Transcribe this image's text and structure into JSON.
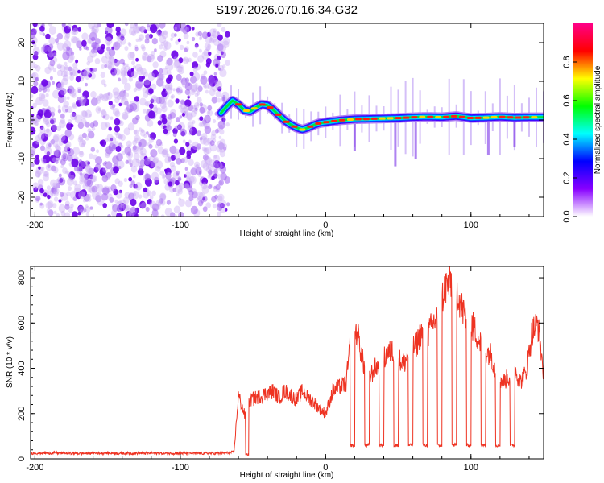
{
  "chart_data": [
    {
      "type": "heatmap",
      "title": "S197.2026.070.16.34.G32",
      "xlabel": "Height of straight line (km)",
      "ylabel": "Frequency (Hz)",
      "xlim": [
        -203,
        150
      ],
      "ylim": [
        -25,
        25
      ],
      "x_ticks": [
        {
          "value": -200,
          "label": "-200"
        },
        {
          "value": -100,
          "label": "-100"
        },
        {
          "value": 0,
          "label": "0"
        },
        {
          "value": 100,
          "label": "100"
        }
      ],
      "y_ticks": [
        {
          "value": 20,
          "label": "20"
        },
        {
          "value": 10,
          "label": "10"
        },
        {
          "value": 0,
          "label": "0"
        },
        {
          "value": -10,
          "label": "-10"
        },
        {
          "value": -20,
          "label": "-20"
        }
      ],
      "noise_region_x": [
        -203,
        -67
      ],
      "signal_start_x": -72,
      "signal_track": {
        "x": [
          -72,
          -68,
          -64,
          -60,
          -56,
          -52,
          -48,
          -44,
          -40,
          -36,
          -32,
          -28,
          -24,
          -20,
          -16,
          -12,
          -8,
          -4,
          0,
          10,
          20,
          30,
          40,
          50,
          60,
          70,
          80,
          90,
          100,
          110,
          120,
          130,
          140,
          150
        ],
        "y": [
          1.8,
          3.5,
          5.0,
          4.0,
          2.5,
          2.2,
          3.2,
          4.0,
          3.8,
          2.6,
          1.2,
          -0.2,
          -1.2,
          -2.0,
          -2.5,
          -2.0,
          -1.3,
          -0.8,
          -0.6,
          -0.1,
          0.2,
          0.3,
          0.4,
          0.5,
          0.7,
          0.8,
          0.7,
          1.0,
          0.5,
          0.6,
          0.8,
          0.6,
          0.7,
          0.7
        ]
      },
      "colorbar": {
        "label": "Normalized spectral amplitude",
        "range": [
          0,
          1
        ],
        "ticks": [
          {
            "value": 0.0,
            "label": "0.0"
          },
          {
            "value": 0.2,
            "label": "0.2"
          },
          {
            "value": 0.4,
            "label": "0.4"
          },
          {
            "value": 0.6,
            "label": "0.6"
          },
          {
            "value": 0.8,
            "label": "0.8"
          }
        ],
        "colors": [
          "#ffffff",
          "#8800ff",
          "#0000ff",
          "#00ffff",
          "#00ff00",
          "#ffff00",
          "#ff0000",
          "#ff0088"
        ]
      }
    },
    {
      "type": "line",
      "xlabel": "Height of straight line (km)",
      "ylabel": "SNR (10 * v/v)",
      "xlim": [
        -203,
        150
      ],
      "ylim": [
        0,
        850
      ],
      "x_ticks": [
        {
          "value": -200,
          "label": "-200"
        },
        {
          "value": -100,
          "label": "-100"
        },
        {
          "value": 0,
          "label": "0"
        },
        {
          "value": 100,
          "label": "100"
        }
      ],
      "y_ticks": [
        {
          "value": 0,
          "label": "0"
        },
        {
          "value": 200,
          "label": "200"
        },
        {
          "value": 400,
          "label": "400"
        },
        {
          "value": 600,
          "label": "600"
        },
        {
          "value": 800,
          "label": "800"
        }
      ],
      "series": [
        {
          "name": "SNR",
          "color": "#ee3322",
          "x": [
            -203,
            -190,
            -180,
            -170,
            -160,
            -150,
            -140,
            -130,
            -120,
            -110,
            -100,
            -90,
            -80,
            -70,
            -63,
            -60,
            -55,
            -52,
            -48,
            -44,
            -40,
            -36,
            -32,
            -28,
            -24,
            -20,
            -16,
            -12,
            -8,
            -4,
            0,
            5,
            10,
            14,
            18,
            22,
            26,
            30,
            34,
            38,
            42,
            46,
            50,
            54,
            58,
            62,
            66,
            70,
            74,
            78,
            82,
            86,
            90,
            94,
            98,
            102,
            106,
            110,
            114,
            118,
            122,
            126,
            130,
            134,
            138,
            142,
            146,
            150
          ],
          "y": [
            25,
            26,
            25,
            24,
            25,
            26,
            24,
            25,
            25,
            24,
            25,
            25,
            24,
            25,
            30,
            280,
            180,
            260,
            270,
            280,
            290,
            300,
            270,
            300,
            280,
            260,
            300,
            270,
            250,
            220,
            200,
            300,
            320,
            330,
            560,
            550,
            420,
            360,
            400,
            420,
            460,
            480,
            440,
            420,
            480,
            500,
            560,
            540,
            600,
            640,
            760,
            780,
            760,
            660,
            600,
            580,
            520,
            480,
            460,
            360,
            340,
            360,
            400,
            340,
            380,
            560,
            600,
            380
          ]
        }
      ],
      "dropouts": [
        {
          "x": [
            -55,
            -53
          ],
          "y": 20
        },
        {
          "x": [
            17,
            20
          ],
          "y": 60
        },
        {
          "x": [
            27,
            30
          ],
          "y": 60
        },
        {
          "x": [
            37,
            40
          ],
          "y": 60
        },
        {
          "x": [
            47,
            50
          ],
          "y": 60
        },
        {
          "x": [
            57,
            60
          ],
          "y": 60
        },
        {
          "x": [
            67,
            70
          ],
          "y": 60
        },
        {
          "x": [
            77,
            80
          ],
          "y": 60
        },
        {
          "x": [
            87,
            90
          ],
          "y": 60
        },
        {
          "x": [
            97,
            100
          ],
          "y": 60
        },
        {
          "x": [
            107,
            110
          ],
          "y": 60
        },
        {
          "x": [
            117,
            120
          ],
          "y": 60
        },
        {
          "x": [
            127,
            130
          ],
          "y": 60
        }
      ]
    }
  ]
}
